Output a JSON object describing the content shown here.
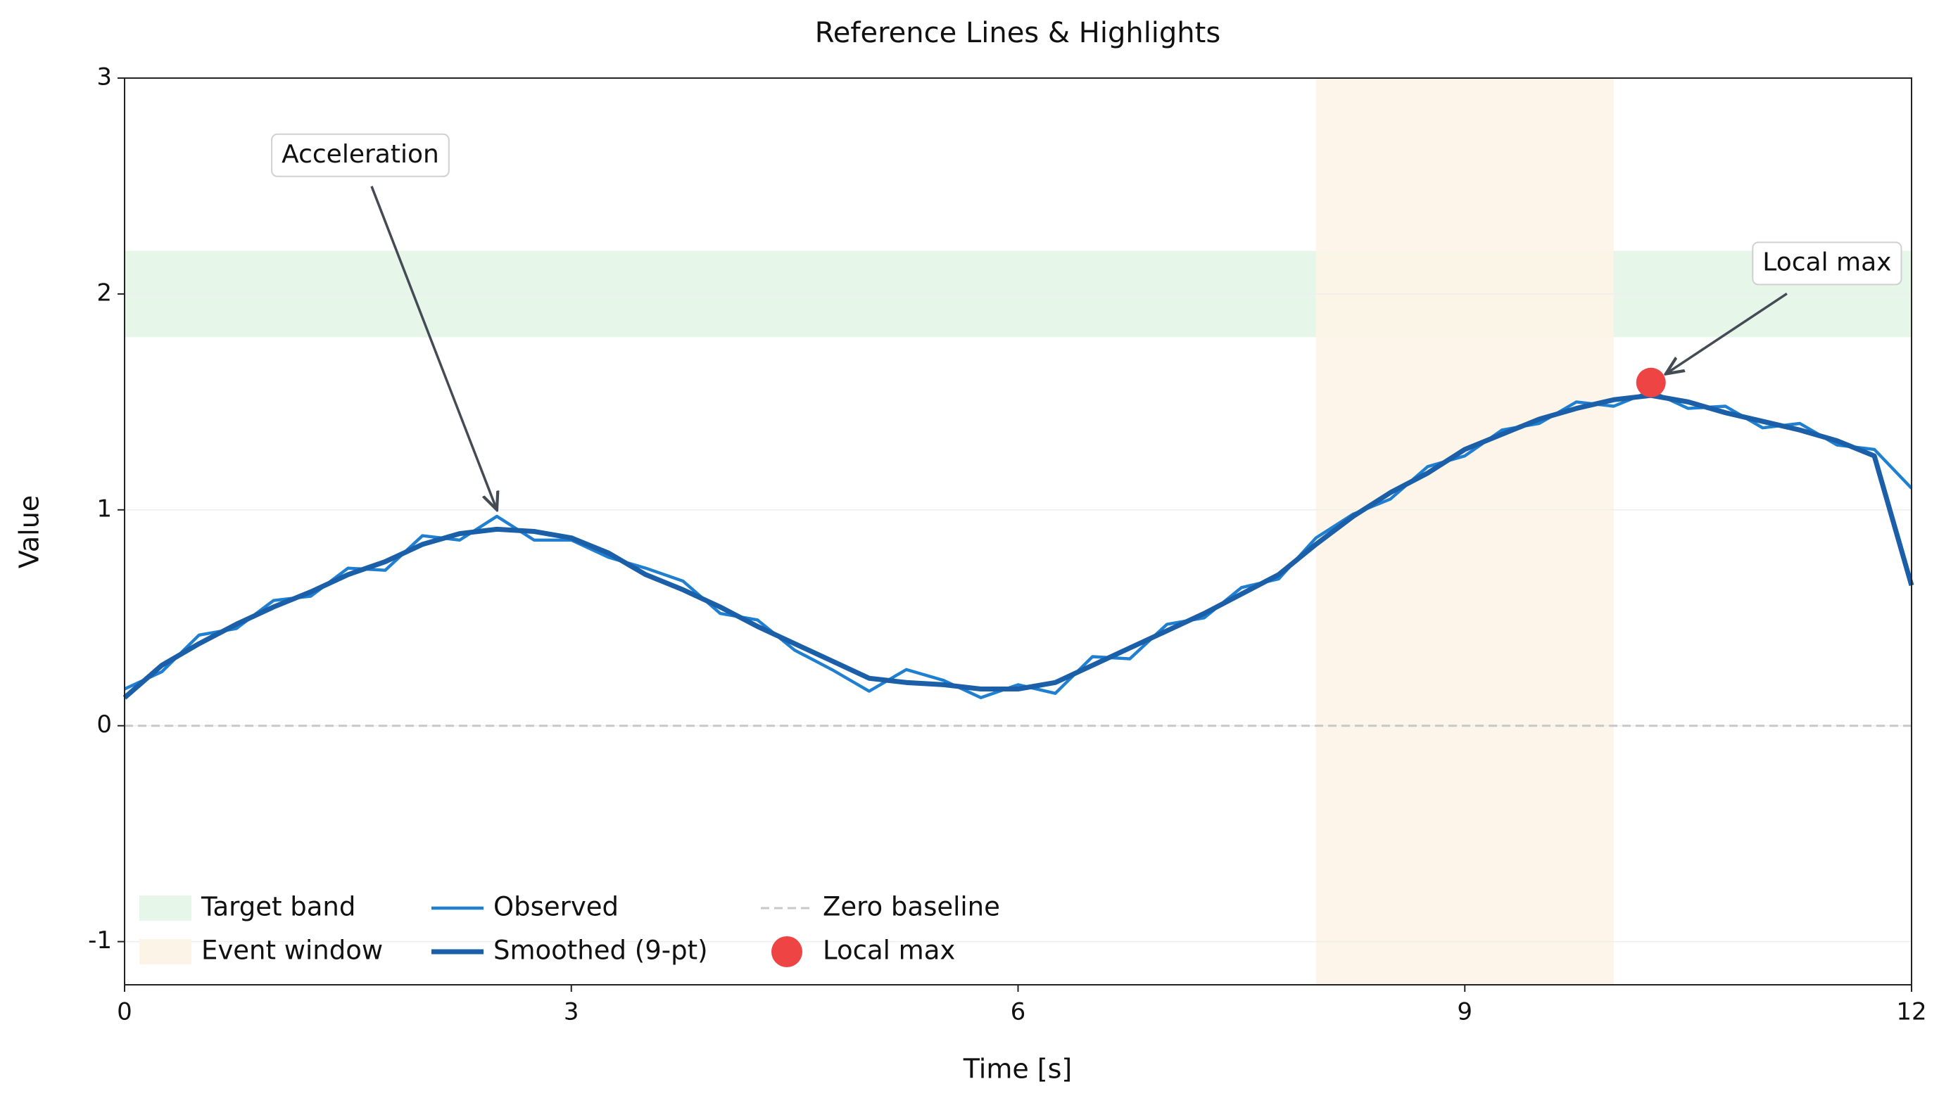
{
  "chart_data": {
    "type": "line",
    "title": "Reference Lines & Highlights",
    "x_label": "Time [s]",
    "y_label": "Value",
    "xlim": [
      0,
      12
    ],
    "ylim": [
      -1.2,
      3
    ],
    "xticks": [
      0,
      3,
      6,
      9,
      12
    ],
    "yticks": [
      -1,
      0,
      1,
      2,
      3
    ],
    "grid": true,
    "legend": "lower left",
    "x": [
      0,
      0.25,
      0.5,
      0.75,
      1,
      1.25,
      1.5,
      1.75,
      2,
      2.25,
      2.5,
      2.75,
      3,
      3.25,
      3.5,
      3.75,
      4,
      4.25,
      4.5,
      4.75,
      5,
      5.25,
      5.5,
      5.75,
      6,
      6.25,
      6.5,
      6.75,
      7,
      7.25,
      7.5,
      7.75,
      8,
      8.25,
      8.5,
      8.75,
      9,
      9.25,
      9.5,
      9.75,
      10,
      10.25,
      10.5,
      10.75,
      11,
      11.25,
      11.5,
      11.75,
      12
    ],
    "series": [
      {
        "name": "Observed",
        "color": "#1f7fd1",
        "width": 2.5,
        "values": [
          0.17,
          0.25,
          0.42,
          0.45,
          0.58,
          0.6,
          0.73,
          0.72,
          0.88,
          0.86,
          0.97,
          0.86,
          0.86,
          0.78,
          0.73,
          0.67,
          0.52,
          0.49,
          0.35,
          0.26,
          0.16,
          0.26,
          0.21,
          0.13,
          0.19,
          0.15,
          0.32,
          0.31,
          0.47,
          0.5,
          0.64,
          0.68,
          0.87,
          0.98,
          1.05,
          1.2,
          1.25,
          1.37,
          1.4,
          1.5,
          1.48,
          1.55,
          1.47,
          1.48,
          1.38,
          1.4,
          1.3,
          1.28,
          1.1
        ]
      },
      {
        "name": "Smoothed (9-pt)",
        "color": "#1a5fa8",
        "width": 4,
        "values": [
          0.13,
          0.28,
          0.38,
          0.47,
          0.55,
          0.62,
          0.7,
          0.76,
          0.84,
          0.89,
          0.91,
          0.9,
          0.87,
          0.8,
          0.7,
          0.63,
          0.55,
          0.46,
          0.38,
          0.3,
          0.22,
          0.2,
          0.19,
          0.17,
          0.17,
          0.2,
          0.28,
          0.36,
          0.44,
          0.52,
          0.61,
          0.7,
          0.84,
          0.97,
          1.08,
          1.17,
          1.28,
          1.35,
          1.42,
          1.47,
          1.51,
          1.53,
          1.5,
          1.45,
          1.41,
          1.37,
          1.32,
          1.25,
          0.65
        ]
      }
    ],
    "reference_bands": [
      {
        "name": "Target band",
        "axis": "y",
        "range": [
          1.8,
          2.2
        ],
        "color": "#e6f7ea"
      },
      {
        "name": "Event window",
        "axis": "x",
        "range": [
          8,
          10
        ],
        "color": "#fdf4e8"
      }
    ],
    "reference_lines": [
      {
        "name": "Zero baseline",
        "y": 0,
        "color": "#c8c8c8"
      }
    ],
    "highlights": [
      {
        "name": "Local max",
        "x": 10.25,
        "y": 1.59,
        "color": "#ef4444"
      }
    ],
    "annotations": [
      {
        "text": "Acceleration",
        "x": 2.5,
        "y": 1.0
      },
      {
        "text": "Local max",
        "x": 10.35,
        "y": 1.63
      }
    ]
  }
}
